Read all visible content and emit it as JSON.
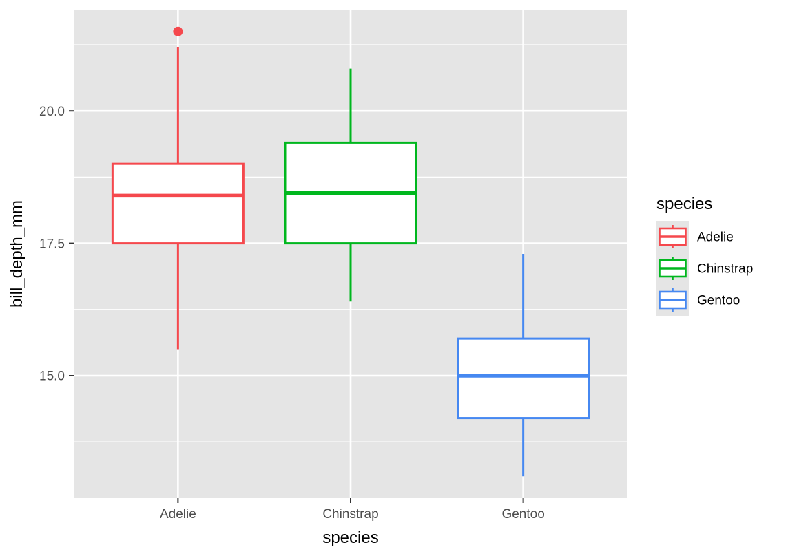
{
  "chart_data": {
    "type": "boxplot",
    "title": "",
    "xlabel": "species",
    "ylabel": "bill_depth_mm",
    "categories": [
      "Adelie",
      "Chinstrap",
      "Gentoo"
    ],
    "series": [
      {
        "name": "Adelie",
        "color": "#F5484D",
        "whisker_low": 15.5,
        "q1": 17.5,
        "median": 18.4,
        "q3": 19.0,
        "whisker_high": 21.2,
        "outliers": [
          21.5
        ]
      },
      {
        "name": "Chinstrap",
        "color": "#00B71E",
        "whisker_low": 16.4,
        "q1": 17.5,
        "median": 18.45,
        "q3": 19.4,
        "whisker_high": 20.8,
        "outliers": []
      },
      {
        "name": "Gentoo",
        "color": "#4688F1",
        "whisker_low": 13.1,
        "q1": 14.2,
        "median": 15.0,
        "q3": 15.7,
        "whisker_high": 17.3,
        "outliers": []
      }
    ],
    "y_ticks": [
      {
        "value": 15.0,
        "label": "15.0"
      },
      {
        "value": 17.5,
        "label": "17.5"
      },
      {
        "value": 20.0,
        "label": "20.0"
      }
    ],
    "y_minor_ticks": [
      13.75,
      16.25,
      18.75,
      21.25
    ],
    "ylim": [
      12.7,
      21.9
    ],
    "grid": true,
    "legend": {
      "title": "species",
      "position": "right"
    }
  },
  "styles": {
    "panel_bg": "#E5E5E5",
    "grid_color": "#FFFFFF",
    "tick_mark_color": "#333333",
    "tick_label_color": "#4D4D4D",
    "text_color": "#000000",
    "legend_key_bg": "#E5E5E5",
    "box_fill": "#FFFFFF"
  }
}
